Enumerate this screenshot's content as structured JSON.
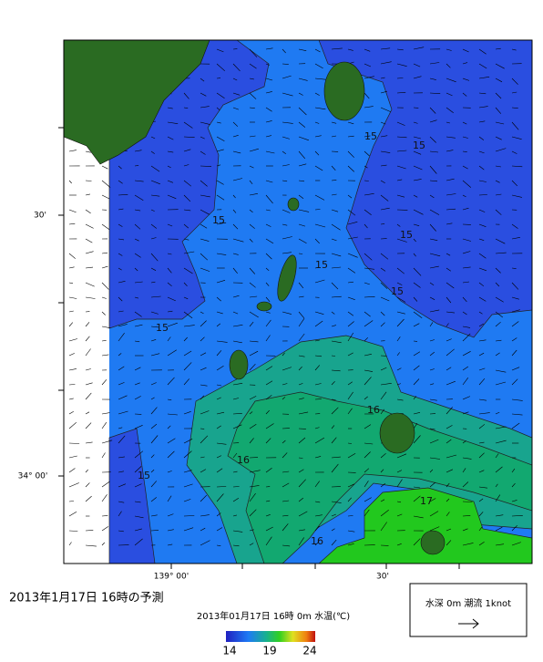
{
  "map": {
    "lat_labels": [
      "30'",
      "34° 00'"
    ],
    "lon_labels": [
      "139° 00'",
      "30'"
    ],
    "contour_labels": [
      "15",
      "15",
      "15",
      "15",
      "15",
      "15",
      "15",
      "15",
      "16",
      "16",
      "16",
      "17"
    ]
  },
  "caption": "2013年1月17日 16時の予測",
  "colorbar": {
    "title": "2013年01月17日 16時 0m 水温(℃)",
    "ticks": [
      14,
      19,
      24
    ]
  },
  "legend": {
    "label": "水深 0m 潮流 1knot"
  }
}
